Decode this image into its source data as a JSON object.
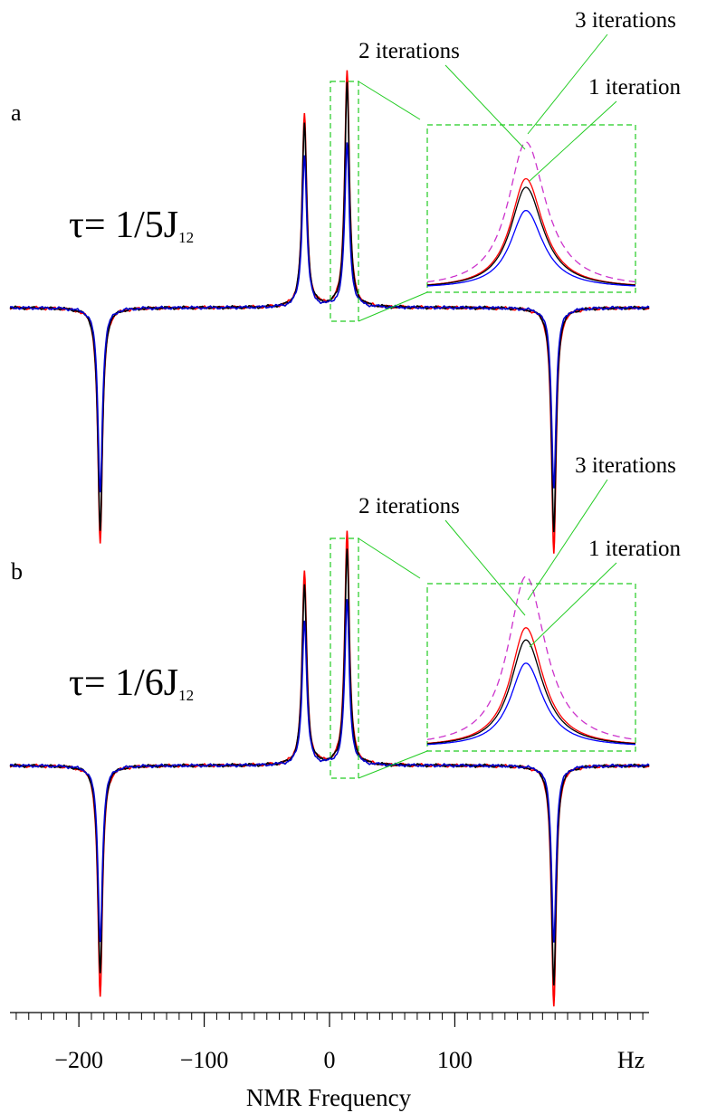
{
  "chart_data": {
    "type": "line",
    "xlabel": "NMR Frequency",
    "x_unit": "Hz",
    "xlim": [
      -255,
      255
    ],
    "x_ticks": [
      -200,
      -100,
      0,
      100
    ],
    "x_tick_labels": [
      "−200",
      "−100",
      "0",
      "100"
    ],
    "panels": [
      {
        "label": "a",
        "tau_prefix": "τ= 1/5J",
        "tau_subscript": "12",
        "peaks": [
          {
            "x": -183,
            "sign": -1,
            "black": 1.0,
            "red": 1.05,
            "blue": 0.82
          },
          {
            "x": -20,
            "sign": 1,
            "black": 0.82,
            "red": 0.86,
            "blue": 0.68
          },
          {
            "x": 14,
            "sign": 1,
            "black": 1.0,
            "red": 1.06,
            "blue": 0.73
          },
          {
            "x": 179,
            "sign": -1,
            "black": 1.0,
            "red": 1.1,
            "blue": 0.8
          }
        ],
        "inset": {
          "lines": [
            {
              "name": "3 iterations",
              "color": "#ff0000",
              "peak": 0.9
            },
            {
              "name": "2 iterations",
              "color": "#000000",
              "peak": 0.83
            },
            {
              "name": "1 iteration",
              "color": "#0000ff",
              "peak": 0.64
            },
            {
              "name": "",
              "color": "#cc33cc",
              "peak": 1.2,
              "dashed": true
            }
          ]
        }
      },
      {
        "label": "b",
        "tau_prefix": "τ= 1/6J",
        "tau_subscript": "12",
        "peaks": [
          {
            "x": -183,
            "sign": -1,
            "black": 0.95,
            "red": 1.05,
            "blue": 0.8
          },
          {
            "x": -20,
            "sign": 1,
            "black": 0.82,
            "red": 0.88,
            "blue": 0.66
          },
          {
            "x": 14,
            "sign": 1,
            "black": 0.98,
            "red": 1.07,
            "blue": 0.75
          },
          {
            "x": 179,
            "sign": -1,
            "black": 1.0,
            "red": 1.1,
            "blue": 0.8
          }
        ],
        "inset": {
          "lines": [
            {
              "name": "3 iterations",
              "color": "#ff0000",
              "peak": 0.98
            },
            {
              "name": "2 iterations",
              "color": "#000000",
              "peak": 0.88
            },
            {
              "name": "1 iteration",
              "color": "#0000ff",
              "peak": 0.69
            },
            {
              "name": "",
              "color": "#cc33cc",
              "peak": 1.4,
              "dashed": true
            }
          ]
        }
      }
    ]
  }
}
